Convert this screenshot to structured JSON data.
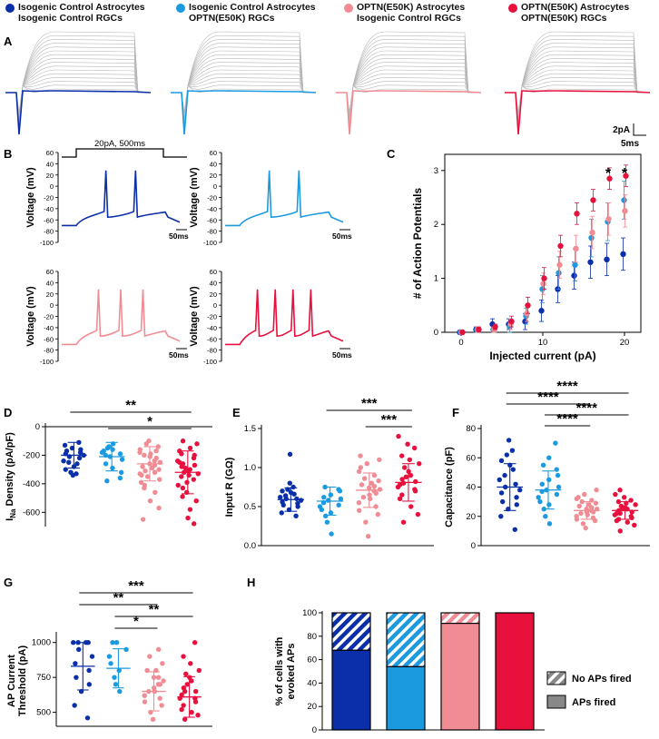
{
  "legend": {
    "items": [
      {
        "line1": "Isogenic Control Astrocytes",
        "line2": "Isogenic Control RGCs",
        "color": "#0a2fa8"
      },
      {
        "line1": "Isogenic Control Astrocytes",
        "line2": "OPTN(E50K) RGCs",
        "color": "#1b9ae0"
      },
      {
        "line1": "OPTN(E50K) Astrocytes",
        "line2": "Isogenic Control RGCs",
        "color": "#f08c94"
      },
      {
        "line1": "OPTN(E50K) Astrocytes",
        "line2": "OPTN(E50K) RGCs",
        "color": "#e8113e"
      }
    ]
  },
  "colors": {
    "g1": "#0a2fa8",
    "g2": "#1b9ae0",
    "g3": "#f08c94",
    "g4": "#e8113e",
    "grey": "#b8b8b8"
  },
  "panelA": {
    "letter": "A",
    "scale_current": "2pA",
    "scale_time": "5ms"
  },
  "panelB": {
    "letter": "B",
    "stimulus_label": "20pA, 500ms",
    "ylabel": "Voltage (mV)",
    "yticks": [
      "60",
      "40",
      "20",
      "0",
      "-20",
      "-40",
      "-60",
      "-80",
      "-100"
    ],
    "scale_time": "50ms",
    "spike_counts": [
      2,
      2,
      3,
      4
    ]
  },
  "chart_data": [
    {
      "panel": "C",
      "type": "scatter",
      "xlabel": "Injected current (pA)",
      "ylabel": "# of Action Potentials",
      "xlim": [
        -2,
        22
      ],
      "ylim": [
        0,
        3.3
      ],
      "xticks": [
        "0",
        "10",
        "20"
      ],
      "yticks": [
        "0",
        "1",
        "2",
        "3"
      ],
      "annotations": [
        "*",
        "*"
      ],
      "x": [
        0,
        2,
        4,
        6,
        8,
        10,
        12,
        14,
        16,
        18,
        20
      ],
      "series": [
        {
          "name": "Isogenic Control Astrocytes / Isogenic Control RGCs",
          "values": [
            0,
            0.05,
            0.15,
            0.15,
            0.2,
            0.4,
            0.8,
            1.05,
            1.3,
            1.35,
            1.45
          ],
          "err": [
            0,
            0.05,
            0.1,
            0.1,
            0.15,
            0.2,
            0.25,
            0.25,
            0.3,
            0.3,
            0.3
          ]
        },
        {
          "name": "Isogenic Control Astrocytes / OPTN(E50K) RGCs",
          "values": [
            0,
            0.05,
            0.05,
            0.1,
            0.3,
            0.8,
            1.1,
            1.25,
            1.75,
            2.05,
            2.45
          ],
          "err": [
            0,
            0.05,
            0.05,
            0.1,
            0.15,
            0.25,
            0.3,
            0.3,
            0.35,
            0.35,
            0.35
          ]
        },
        {
          "name": "OPTN(E50K) Astrocytes / Isogenic Control RGCs",
          "values": [
            0,
            0.05,
            0.05,
            0.15,
            0.35,
            0.9,
            1.25,
            1.55,
            1.85,
            2.1,
            2.25
          ],
          "err": [
            0,
            0.05,
            0.05,
            0.1,
            0.15,
            0.2,
            0.25,
            0.25,
            0.3,
            0.3,
            0.3
          ]
        },
        {
          "name": "OPTN(E50K) Astrocytes / OPTN(E50K) RGCs",
          "values": [
            0,
            0.05,
            0.1,
            0.2,
            0.5,
            1.0,
            1.6,
            2.2,
            2.45,
            2.85,
            2.9
          ],
          "err": [
            0,
            0.05,
            0.05,
            0.1,
            0.15,
            0.2,
            0.2,
            0.2,
            0.2,
            0.2,
            0.2
          ]
        }
      ]
    },
    {
      "panel": "D",
      "type": "scatter",
      "ylabel_main": "I",
      "ylabel_sub": "Na",
      "ylabel_rest": " Density (pA/pF)",
      "ylim": [
        -700,
        0
      ],
      "yticks": [
        "0",
        "-200",
        "-400",
        "-600"
      ],
      "means": [
        -200,
        -210,
        -260,
        -320
      ],
      "sd": [
        90,
        100,
        120,
        150
      ],
      "points": [
        [
          -110,
          -130,
          -150,
          -160,
          -170,
          -180,
          -190,
          -200,
          -210,
          -220,
          -240,
          -250,
          -260,
          -280,
          -300,
          -320,
          -330,
          -340
        ],
        [
          -120,
          -140,
          -150,
          -160,
          -170,
          -180,
          -190,
          -200,
          -210,
          -230,
          -260,
          -290,
          -320,
          -360,
          -380
        ],
        [
          -100,
          -120,
          -140,
          -160,
          -170,
          -180,
          -190,
          -200,
          -210,
          -220,
          -240,
          -250,
          -260,
          -270,
          -280,
          -290,
          -300,
          -310,
          -320,
          -330,
          -340,
          -350,
          -370,
          -390,
          -410,
          -430,
          -460,
          -520,
          -570,
          -650
        ],
        [
          -100,
          -120,
          -150,
          -170,
          -190,
          -200,
          -220,
          -240,
          -250,
          -260,
          -270,
          -280,
          -290,
          -300,
          -310,
          -320,
          -330,
          -340,
          -350,
          -370,
          -390,
          -410,
          -430,
          -460,
          -490,
          -520,
          -580,
          -640,
          -680
        ]
      ],
      "brackets": [
        {
          "from": 0,
          "to": 3,
          "label": "**"
        },
        {
          "from": 1,
          "to": 3,
          "label": "*"
        }
      ]
    },
    {
      "panel": "E",
      "type": "scatter",
      "ylabel": "Input R (GΩ)",
      "ylim": [
        0,
        1.5
      ],
      "yticks": [
        "0.0",
        "0.5",
        "1.0",
        "1.5"
      ],
      "means": [
        0.59,
        0.57,
        0.71,
        0.81
      ],
      "sd": [
        0.15,
        0.18,
        0.22,
        0.24
      ],
      "points": [
        [
          0.38,
          0.42,
          0.46,
          0.5,
          0.52,
          0.54,
          0.56,
          0.58,
          0.6,
          0.6,
          0.62,
          0.64,
          0.66,
          0.68,
          0.7,
          0.72,
          0.75,
          0.8,
          1.17
        ],
        [
          0.15,
          0.3,
          0.38,
          0.42,
          0.46,
          0.5,
          0.52,
          0.55,
          0.58,
          0.6,
          0.62,
          0.65,
          0.7,
          0.72,
          0.75
        ],
        [
          0.12,
          0.3,
          0.4,
          0.45,
          0.5,
          0.55,
          0.6,
          0.62,
          0.65,
          0.67,
          0.7,
          0.72,
          0.74,
          0.76,
          0.78,
          0.8,
          0.83,
          0.86,
          0.9,
          0.95,
          1.0,
          1.05,
          1.1,
          1.15
        ],
        [
          0.3,
          0.4,
          0.5,
          0.6,
          0.65,
          0.7,
          0.72,
          0.75,
          0.78,
          0.8,
          0.82,
          0.85,
          0.88,
          0.9,
          0.95,
          1.0,
          1.05,
          1.1,
          1.15,
          1.25,
          1.3,
          1.4
        ]
      ],
      "brackets": [
        {
          "from": 1,
          "to": 3,
          "label": "***"
        },
        {
          "from": 2,
          "to": 3,
          "label": "***"
        }
      ]
    },
    {
      "panel": "F",
      "type": "scatter",
      "ylabel": "Capacitance (pF)",
      "ylim": [
        0,
        80
      ],
      "yticks": [
        "0",
        "20",
        "40",
        "60",
        "80"
      ],
      "means": [
        40,
        38,
        24,
        24
      ],
      "sd": [
        16,
        13,
        6,
        6
      ],
      "points": [
        [
          11,
          20,
          25,
          28,
          30,
          33,
          36,
          38,
          40,
          42,
          45,
          48,
          52,
          55,
          58,
          62,
          65,
          72
        ],
        [
          15,
          20,
          25,
          28,
          30,
          33,
          35,
          37,
          38,
          40,
          42,
          45,
          48,
          52,
          55,
          60,
          70
        ],
        [
          12,
          15,
          17,
          18,
          19,
          20,
          21,
          22,
          23,
          23,
          24,
          25,
          25,
          26,
          27,
          28,
          29,
          30,
          31,
          32,
          33,
          35,
          38
        ],
        [
          10,
          14,
          16,
          17,
          18,
          19,
          20,
          21,
          22,
          22,
          23,
          24,
          25,
          25,
          26,
          27,
          28,
          29,
          30,
          31,
          33,
          35,
          38
        ]
      ],
      "brackets": [
        {
          "from": 0,
          "to": 3,
          "label": "****"
        },
        {
          "from": 0,
          "to": 2,
          "label": "****"
        },
        {
          "from": 1,
          "to": 3,
          "label": "****"
        },
        {
          "from": 1,
          "to": 2,
          "label": "****"
        }
      ]
    },
    {
      "panel": "G",
      "type": "scatter",
      "ylabel_lines": [
        "AP Current",
        "Threshold (pA)"
      ],
      "ylim": [
        400,
        1050
      ],
      "yticks": [
        "1000",
        "750",
        "500"
      ],
      "means": [
        830,
        815,
        650,
        610
      ],
      "sd": [
        170,
        140,
        140,
        145
      ],
      "points": [
        [
          460,
          550,
          650,
          700,
          750,
          800,
          850,
          900,
          950,
          1000,
          1000,
          1000,
          1000
        ],
        [
          650,
          700,
          750,
          800,
          850,
          900,
          950,
          1000,
          1000
        ],
        [
          450,
          500,
          550,
          575,
          600,
          620,
          650,
          650,
          675,
          700,
          700,
          725,
          750,
          750,
          800,
          800,
          850,
          900,
          950
        ],
        [
          450,
          480,
          500,
          520,
          550,
          575,
          600,
          600,
          625,
          650,
          650,
          675,
          700,
          725,
          750,
          775,
          800,
          850,
          900,
          1000
        ]
      ],
      "brackets": [
        {
          "from": 0,
          "to": 3,
          "label": "***"
        },
        {
          "from": 0,
          "to": 2,
          "label": "**"
        },
        {
          "from": 1,
          "to": 3,
          "label": "**"
        },
        {
          "from": 1,
          "to": 2,
          "label": "*"
        }
      ]
    },
    {
      "panel": "H",
      "type": "bar",
      "ylabel_lines": [
        "% of cells with",
        "evoked APs"
      ],
      "ylim": [
        0,
        100
      ],
      "yticks": [
        "0",
        "20",
        "40",
        "60",
        "80",
        "100"
      ],
      "fired_percent": [
        68,
        54,
        91,
        100
      ],
      "legend": [
        "No APs fired",
        "APs fired"
      ]
    }
  ]
}
